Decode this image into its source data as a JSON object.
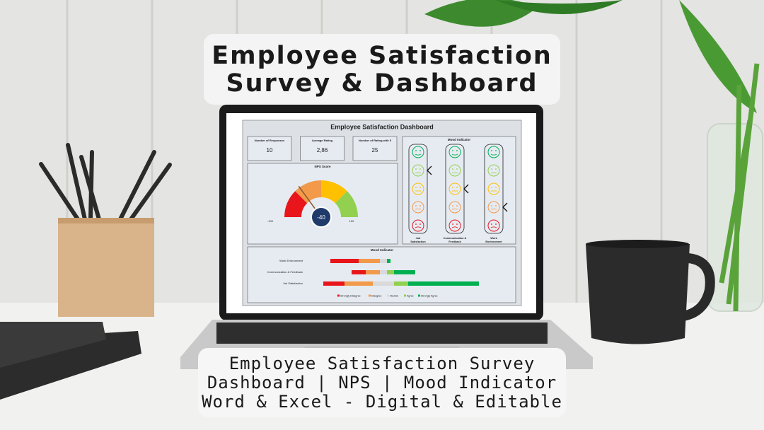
{
  "header": {
    "title_lines": [
      "Employee Satisfaction",
      "Survey & Dashboard"
    ]
  },
  "footer": {
    "lines": [
      "Employee Satisfaction Survey",
      "Dashboard | NPS | Mood Indicator",
      "Word & Excel - Digital & Editable"
    ]
  },
  "dashboard": {
    "title": "Employee Satisfaction Dashboard",
    "kpis": [
      {
        "label": "Number of Responses",
        "value": 10
      },
      {
        "label": "Average Rating",
        "value": "2,86"
      },
      {
        "label": "Number of Rating with 5",
        "value": 25
      }
    ],
    "nps": {
      "title": "NPS Score",
      "value": -40,
      "min": -100,
      "max": 100
    },
    "mood": {
      "title": "Mood Indicator",
      "columns": [
        {
          "label_lines": [
            "Job",
            "Satisfaction"
          ],
          "selected_face": 1
        },
        {
          "label_lines": [
            "Communication &",
            "Feedback"
          ],
          "selected_face": 2
        },
        {
          "label_lines": [
            "Work",
            "Environment"
          ],
          "selected_face": 3
        }
      ]
    }
  },
  "chart_data": {
    "type": "bar",
    "stacking": "diverging",
    "title": "Mood Indicator",
    "categories": [
      "Work Environment",
      "Communication & Feedback",
      "Job Satisfaction"
    ],
    "series": [
      {
        "name": "Strongly Disagree",
        "color": "#e8161b",
        "values": [
          4,
          2,
          3
        ]
      },
      {
        "name": "Disagree",
        "color": "#f2994a",
        "values": [
          3,
          2,
          4
        ]
      },
      {
        "name": "Neutral",
        "color": "#d9d9d9",
        "values": [
          1,
          1,
          3
        ]
      },
      {
        "name": "Agree",
        "color": "#92d050",
        "values": [
          0,
          1,
          2
        ]
      },
      {
        "name": "Strongly Agree",
        "color": "#00b050",
        "values": [
          0.5,
          3,
          10
        ]
      }
    ]
  }
}
